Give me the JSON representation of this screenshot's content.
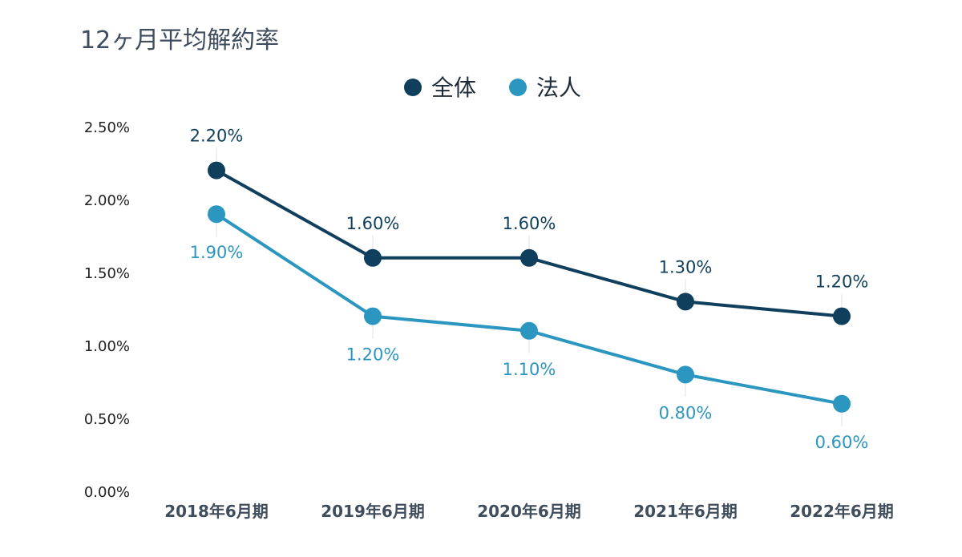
{
  "chart_data": {
    "type": "line",
    "title": "12ヶ月平均解約率",
    "categories": [
      "2018年6月期",
      "2019年6月期",
      "2020年6月期",
      "2021年6月期",
      "2022年6月期"
    ],
    "series": [
      {
        "name": "全体",
        "values": [
          2.2,
          1.6,
          1.6,
          1.3,
          1.2
        ],
        "labels": [
          "2.20%",
          "1.60%",
          "1.60%",
          "1.30%",
          "1.20%"
        ],
        "color": "#0f3f5c",
        "label_position": "above"
      },
      {
        "name": "法人",
        "values": [
          1.9,
          1.2,
          1.1,
          0.8,
          0.6
        ],
        "labels": [
          "1.90%",
          "1.20%",
          "1.10%",
          "0.80%",
          "0.60%"
        ],
        "color": "#2b96bf",
        "label_position": "below"
      }
    ],
    "y_ticks": [
      "0.00%",
      "0.50%",
      "1.00%",
      "1.50%",
      "2.00%",
      "2.50%"
    ],
    "ylim": [
      0,
      2.5
    ],
    "grid": false,
    "legend_position": "top-center"
  }
}
